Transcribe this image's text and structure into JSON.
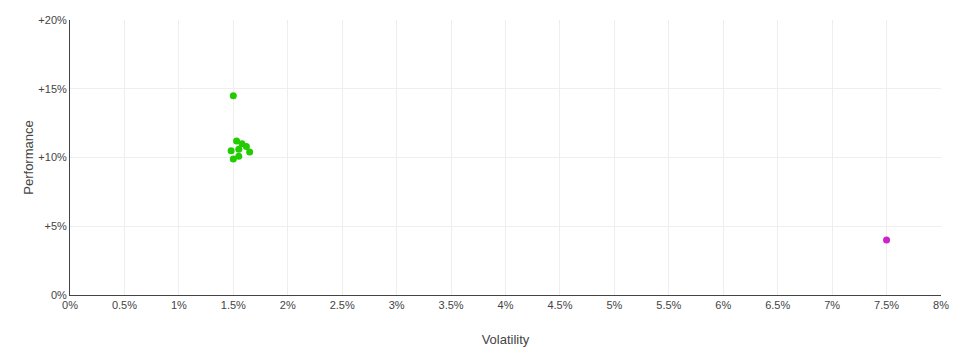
{
  "chart_data": {
    "type": "scatter",
    "xlabel": "Volatility",
    "ylabel": "Performance",
    "xlim": [
      0,
      0.08
    ],
    "ylim": [
      0,
      0.2
    ],
    "xticks": [
      {
        "value": 0.0,
        "label": "0%"
      },
      {
        "value": 0.005,
        "label": "0.5%"
      },
      {
        "value": 0.01,
        "label": "1%"
      },
      {
        "value": 0.015,
        "label": "1.5%"
      },
      {
        "value": 0.02,
        "label": "2%"
      },
      {
        "value": 0.025,
        "label": "2.5%"
      },
      {
        "value": 0.03,
        "label": "3%"
      },
      {
        "value": 0.035,
        "label": "3.5%"
      },
      {
        "value": 0.04,
        "label": "4%"
      },
      {
        "value": 0.045,
        "label": "4.5%"
      },
      {
        "value": 0.05,
        "label": "5%"
      },
      {
        "value": 0.055,
        "label": "5.5%"
      },
      {
        "value": 0.06,
        "label": "6%"
      },
      {
        "value": 0.065,
        "label": "6.5%"
      },
      {
        "value": 0.07,
        "label": "7%"
      },
      {
        "value": 0.075,
        "label": "7.5%"
      },
      {
        "value": 0.08,
        "label": "8%"
      }
    ],
    "yticks": [
      {
        "value": 0.0,
        "label": "0%"
      },
      {
        "value": 0.05,
        "label": "+5%"
      },
      {
        "value": 0.1,
        "label": "+10%"
      },
      {
        "value": 0.15,
        "label": "+15%"
      },
      {
        "value": 0.2,
        "label": "+20%"
      }
    ],
    "grid": true,
    "series": [
      {
        "color": "#22cc00",
        "x": [
          0.015,
          0.0153,
          0.0158,
          0.0162,
          0.0155,
          0.0148,
          0.0165,
          0.0155,
          0.015
        ],
        "values": [
          0.145,
          0.112,
          0.11,
          0.108,
          0.106,
          0.105,
          0.104,
          0.101,
          0.099
        ]
      },
      {
        "color": "#cc22cc",
        "x": [
          0.075
        ],
        "values": [
          0.04
        ]
      }
    ]
  }
}
